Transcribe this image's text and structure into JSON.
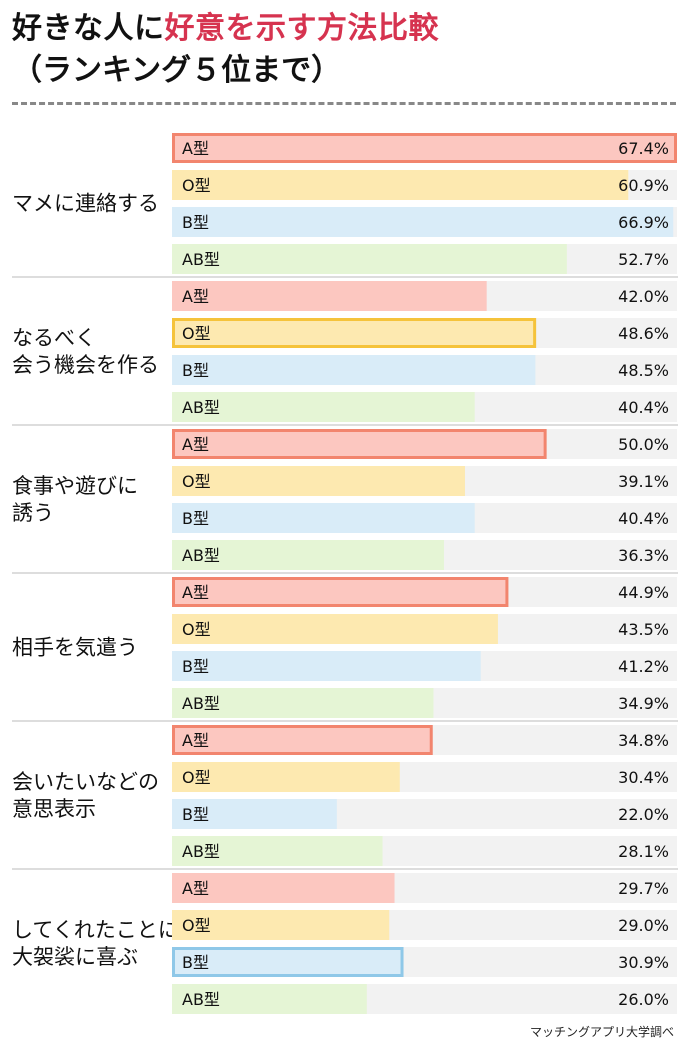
{
  "header": {
    "title_part1": "好きな人に",
    "title_part2": "好意を示す方法比較",
    "subtitle": "（ランキング５位まで）"
  },
  "footer": {
    "source": "マッチングアプリ大学調べ"
  },
  "colors": {
    "accent": "#d6334f",
    "A": "#fcc7c0",
    "A_border": "#f2856e",
    "O": "#fde9b0",
    "O_border": "#f5c33b",
    "B": "#d9ecf8",
    "B_border": "#8fc8e8",
    "AB": "#e5f5d5",
    "track": "#f2f2f2",
    "separator": "#bbbbbb"
  },
  "chart_data": {
    "type": "bar",
    "orientation": "horizontal",
    "xlim": [
      0,
      67.4
    ],
    "series_names": [
      "A型",
      "O型",
      "B型",
      "AB型"
    ],
    "groups": [
      {
        "label": [
          "マメに連絡する"
        ],
        "values": [
          67.4,
          60.9,
          66.9,
          52.7
        ],
        "value_labels": [
          "67.4%",
          "60.9%",
          "66.9%",
          "52.7%"
        ],
        "highlight": 0
      },
      {
        "label": [
          "なるべく",
          "会う機会を作る"
        ],
        "values": [
          42.0,
          48.6,
          48.5,
          40.4
        ],
        "value_labels": [
          "42.0%",
          "48.6%",
          "48.5%",
          "40.4%"
        ],
        "highlight": 1
      },
      {
        "label": [
          "食事や遊びに",
          "誘う"
        ],
        "values": [
          50.0,
          39.1,
          40.4,
          36.3
        ],
        "value_labels": [
          "50.0%",
          "39.1%",
          "40.4%",
          "36.3%"
        ],
        "highlight": 0
      },
      {
        "label": [
          "相手を気遣う"
        ],
        "values": [
          44.9,
          43.5,
          41.2,
          34.9
        ],
        "value_labels": [
          "44.9%",
          "43.5%",
          "41.2%",
          "34.9%"
        ],
        "highlight": 0
      },
      {
        "label": [
          "会いたいなどの",
          "意思表示"
        ],
        "values": [
          34.8,
          30.4,
          22.0,
          28.1
        ],
        "value_labels": [
          "34.8%",
          "30.4%",
          "22.0%",
          "28.1%"
        ],
        "highlight": 0
      },
      {
        "label": [
          "してくれたことに",
          "大袈裟に喜ぶ"
        ],
        "values": [
          29.7,
          29.0,
          30.9,
          26.0
        ],
        "value_labels": [
          "29.7%",
          "29.0%",
          "30.9%",
          "26.0%"
        ],
        "highlight": 2
      }
    ]
  }
}
